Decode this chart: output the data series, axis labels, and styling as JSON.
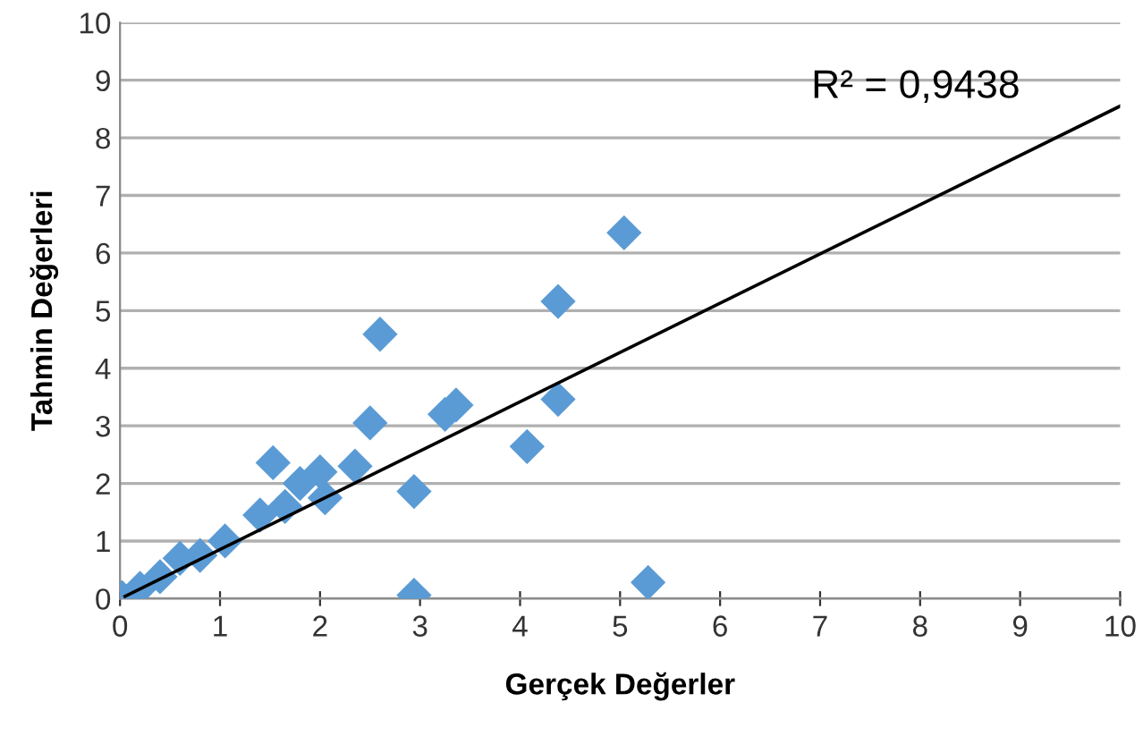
{
  "chart_data": {
    "type": "scatter",
    "xlabel": "Gerçek Değerler",
    "ylabel": "Tahmin Değerleri",
    "xlim": [
      0,
      10
    ],
    "ylim": [
      0,
      10
    ],
    "xticks": [
      0,
      1,
      2,
      3,
      4,
      5,
      6,
      7,
      8,
      9,
      10
    ],
    "yticks": [
      0,
      1,
      2,
      3,
      4,
      5,
      6,
      7,
      8,
      9,
      10
    ],
    "grid": "y",
    "legend": false,
    "series": [
      {
        "color": "#5b9bd5",
        "marker": "diamond",
        "x": [
          0.02,
          0.2,
          0.4,
          0.6,
          0.8,
          1.05,
          1.4,
          1.53,
          1.65,
          1.8,
          2.0,
          2.05,
          2.35,
          2.5,
          2.6,
          2.94,
          2.94,
          3.25,
          3.36,
          4.07,
          4.38,
          4.38,
          5.04,
          5.28
        ],
        "values": [
          0.02,
          0.18,
          0.38,
          0.7,
          0.75,
          1.0,
          1.45,
          2.36,
          1.6,
          2.0,
          2.2,
          1.75,
          2.3,
          3.05,
          4.59,
          1.86,
          0.06,
          3.2,
          3.36,
          2.64,
          3.46,
          5.16,
          6.35,
          0.28
        ]
      },
      {
        "type": "line",
        "color": "#000000",
        "x": [
          0.05,
          10
        ],
        "values": [
          0.04,
          8.55
        ]
      }
    ],
    "annotations": [
      "R² = 0,9438"
    ]
  }
}
